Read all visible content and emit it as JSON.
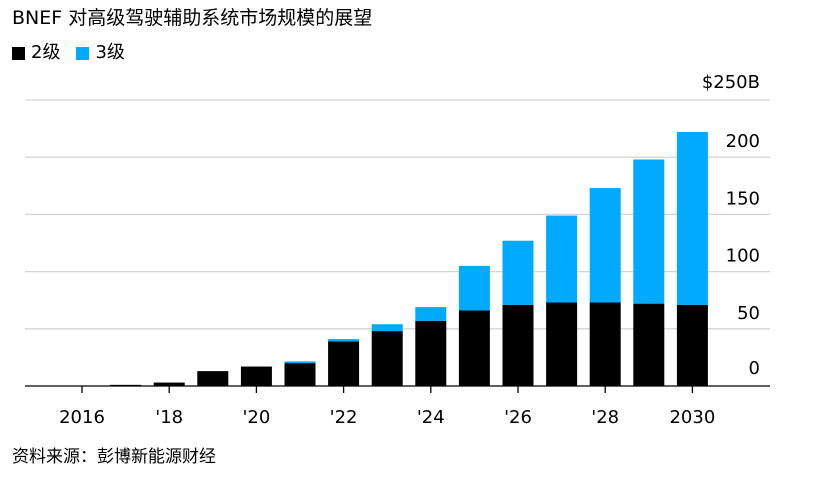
{
  "title": "BNEF 对高级驾驶辅助系统市场规模的展望",
  "source": "资料来源：彭博新能源财经",
  "chart_data": {
    "type": "bar",
    "stacked": true,
    "title": "BNEF 对高级驾驶辅助系统市场规模的展望",
    "y_unit_label": "$250B",
    "ylim": [
      0,
      250
    ],
    "y_ticks": [
      0,
      50,
      100,
      150,
      200,
      250
    ],
    "y_tick_labels": [
      "0",
      "50",
      "100",
      "150",
      "200",
      "$250B"
    ],
    "grid": true,
    "legend_position": "top-left",
    "categories": [
      "2016",
      "2017",
      "2018",
      "2019",
      "2020",
      "2021",
      "2022",
      "2023",
      "2024",
      "2025",
      "2026",
      "2027",
      "2028",
      "2029",
      "2030"
    ],
    "x_tick_labels": [
      "2016",
      "",
      "'18",
      "",
      "'20",
      "",
      "'22",
      "",
      "'24",
      "",
      "'26",
      "",
      "'28",
      "",
      "2030"
    ],
    "series": [
      {
        "name": "2级",
        "color": "#000000",
        "values": [
          0.3,
          1,
          3,
          13,
          17,
          20,
          39,
          48,
          57,
          66,
          71,
          73,
          73,
          72,
          71
        ]
      },
      {
        "name": "3级",
        "color": "#00aaff",
        "values": [
          0,
          0,
          0,
          0,
          0,
          1.5,
          2,
          6,
          12,
          39,
          56,
          76,
          100,
          126,
          151
        ]
      }
    ]
  }
}
